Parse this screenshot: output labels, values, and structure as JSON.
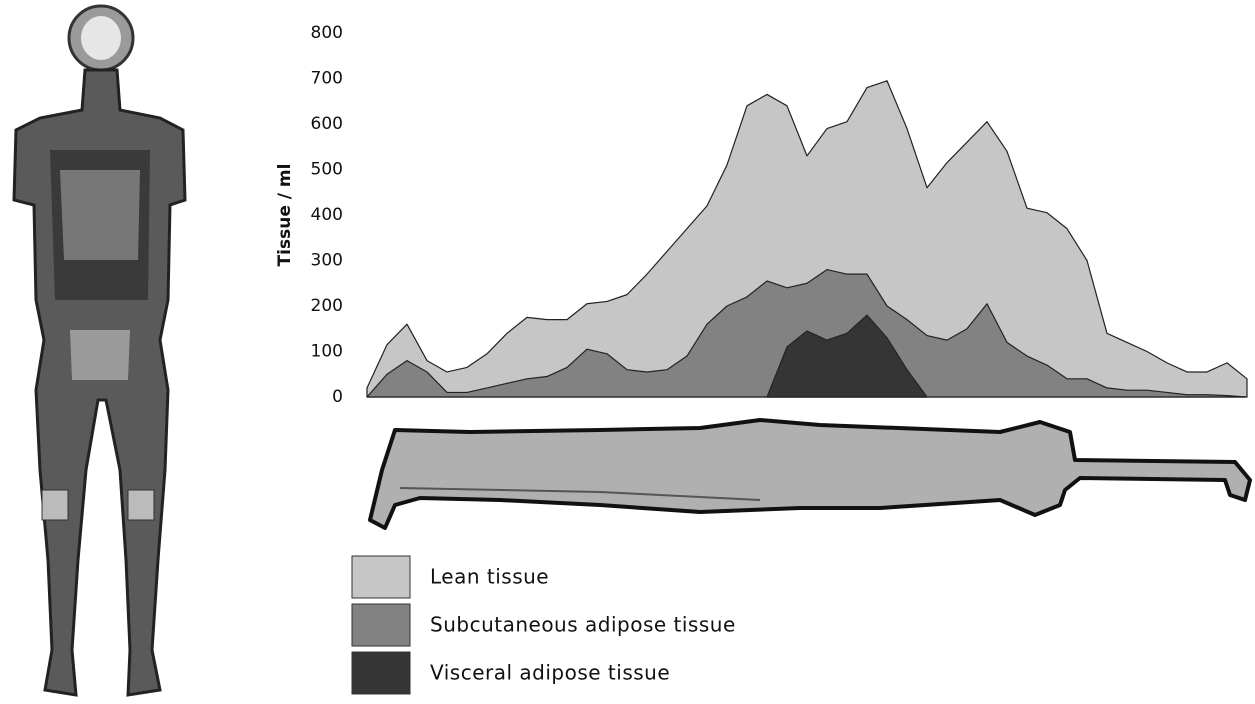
{
  "chart_data": {
    "type": "area",
    "y_label": "Tissue / ml",
    "x": [
      0,
      1,
      2,
      3,
      4,
      5,
      6,
      7,
      8,
      9,
      10,
      11,
      12,
      13,
      14,
      15,
      16,
      17,
      18,
      19,
      20,
      21,
      22,
      23,
      24,
      25,
      26,
      27,
      28,
      29,
      30,
      31,
      32,
      33,
      34,
      35,
      36,
      37,
      38,
      39,
      40,
      41,
      42,
      43,
      44
    ],
    "xlim": [
      0,
      44
    ],
    "ylim": [
      0,
      800
    ],
    "yticks": [
      0,
      100,
      200,
      300,
      400,
      500,
      600,
      700,
      800
    ],
    "grid": false,
    "series": [
      {
        "name": "Lean tissue",
        "color": "#c6c6c6",
        "values": [
          20,
          115,
          160,
          80,
          55,
          65,
          95,
          140,
          175,
          170,
          170,
          205,
          210,
          225,
          270,
          320,
          370,
          420,
          510,
          640,
          665,
          640,
          530,
          590,
          605,
          680,
          695,
          590,
          460,
          515,
          560,
          605,
          540,
          415,
          405,
          370,
          300,
          140,
          120,
          100,
          75,
          55,
          55,
          75,
          40
        ]
      },
      {
        "name": "Subcutaneous adipose tissue",
        "color": "#828282",
        "values": [
          0,
          50,
          80,
          55,
          10,
          10,
          20,
          30,
          40,
          45,
          65,
          105,
          95,
          60,
          55,
          60,
          90,
          160,
          200,
          220,
          255,
          240,
          250,
          280,
          270,
          270,
          200,
          170,
          135,
          125,
          150,
          205,
          120,
          90,
          70,
          40,
          40,
          20,
          15,
          15,
          10,
          5,
          5,
          3,
          0
        ]
      },
      {
        "name": "Visceral adipose tissue",
        "color": "#353535",
        "values": [
          null,
          null,
          null,
          null,
          null,
          null,
          null,
          null,
          null,
          null,
          null,
          null,
          null,
          null,
          null,
          null,
          null,
          null,
          null,
          null,
          0,
          110,
          145,
          125,
          140,
          180,
          130,
          60,
          0,
          null,
          null,
          null,
          null,
          null,
          null,
          null,
          null,
          null,
          null,
          null,
          null,
          null,
          null,
          null,
          null
        ]
      }
    ]
  }
}
